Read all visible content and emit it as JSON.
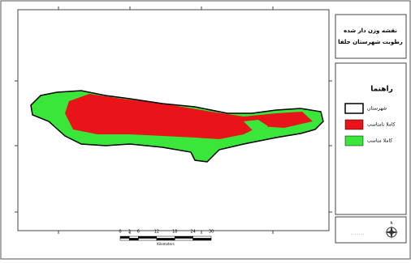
{
  "title": {
    "line1": "نقشه وزن دار شده",
    "line2": "رطوبت شهرستان جلفا"
  },
  "legend": {
    "title": "راهنما",
    "items": [
      {
        "label": "شهرستان",
        "color": "#ffffff"
      },
      {
        "label": "کاملا نامناسب",
        "color": "#e8141a"
      },
      {
        "label": "کاملا مناسب",
        "color": "#3ae63a"
      }
    ]
  },
  "scale_bar": {
    "labels": [
      0,
      3,
      6,
      12,
      18,
      24,
      30
    ],
    "unit": "Kilometers"
  },
  "north": "N"
}
